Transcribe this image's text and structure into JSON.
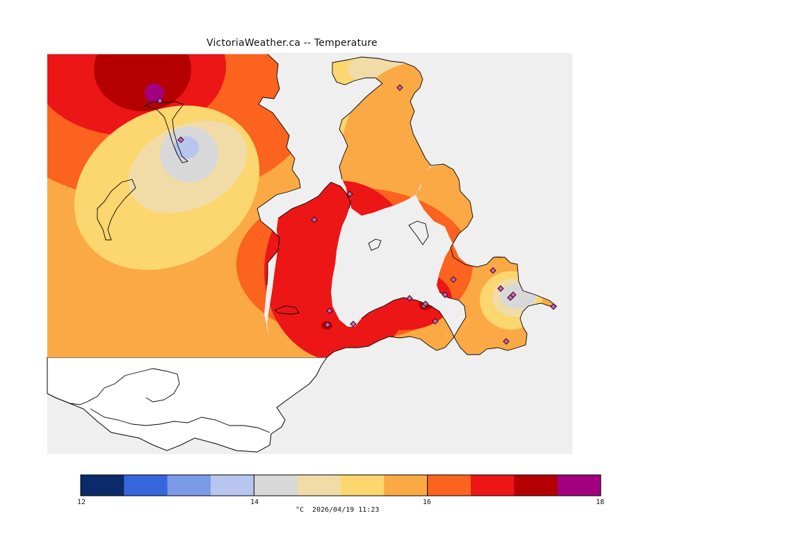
{
  "title": "VictoriaWeather.ca -- Temperature",
  "colorbar": {
    "colors": [
      "#0a2a6a",
      "#3566db",
      "#7b9ae8",
      "#b7c5ef",
      "#d8d8d8",
      "#f1dca8",
      "#fcd66e",
      "#fba945",
      "#fb631f",
      "#ec1616",
      "#b40000",
      "#a3007f"
    ],
    "tick_labels": [
      "12",
      "14",
      "16",
      "18"
    ],
    "unit": "°C",
    "timestamp": "2026/04/19 11:23"
  },
  "map": {
    "ocean_color": "#efefef",
    "outside_land_color": "#ffffff",
    "station_marker": "diamond",
    "station_color": "#a3007f",
    "station_count": 20
  }
}
